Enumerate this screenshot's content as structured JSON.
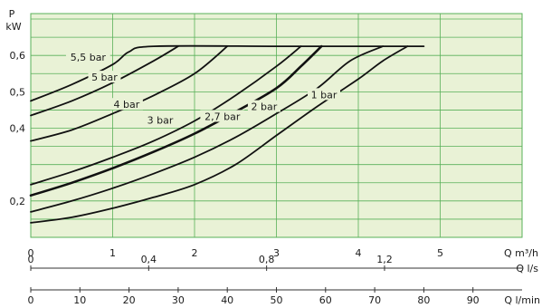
{
  "chart_data": {
    "type": "line",
    "y_axis": {
      "unit_top": "P",
      "unit_bottom": "kW",
      "ticks": [
        {
          "value": 0.2,
          "label": "0,2"
        },
        {
          "value": 0.4,
          "label": "0,4"
        },
        {
          "value": 0.5,
          "label": "0,5"
        },
        {
          "value": 0.6,
          "label": "0,6"
        }
      ],
      "range": [
        0.1,
        0.715
      ]
    },
    "x_axes": [
      {
        "unit": "Q m³/h",
        "range": [
          0,
          6
        ],
        "ticks": [
          {
            "value": 0,
            "label": "0"
          },
          {
            "value": 1,
            "label": "1"
          },
          {
            "value": 2,
            "label": "2"
          },
          {
            "value": 3,
            "label": "3"
          },
          {
            "value": 4,
            "label": "4"
          },
          {
            "value": 5,
            "label": "5"
          }
        ]
      },
      {
        "unit": "Q l/s",
        "ticks": [
          {
            "value": 0,
            "label": "0"
          },
          {
            "value": 0.4,
            "label": "0,4"
          },
          {
            "value": 0.8,
            "label": "0,8"
          },
          {
            "value": 1.2,
            "label": "1,2"
          }
        ]
      },
      {
        "unit": "Q l/min",
        "ticks": [
          {
            "value": 0,
            "label": "0"
          },
          {
            "value": 10,
            "label": "10"
          },
          {
            "value": 20,
            "label": "20"
          },
          {
            "value": 30,
            "label": "30"
          },
          {
            "value": 40,
            "label": "40"
          },
          {
            "value": 50,
            "label": "50"
          },
          {
            "value": 60,
            "label": "60"
          },
          {
            "value": 70,
            "label": "70"
          },
          {
            "value": 80,
            "label": "80"
          },
          {
            "value": 90,
            "label": "90"
          }
        ]
      }
    ],
    "series": [
      {
        "name": "5,5 bar",
        "points": [
          [
            0,
            0.475
          ],
          [
            0.5,
            0.52
          ],
          [
            1.0,
            0.575
          ],
          [
            1.2,
            0.61
          ],
          [
            1.5,
            0.625
          ],
          [
            3.0,
            0.625
          ],
          [
            4.0,
            0.625
          ],
          [
            4.8,
            0.625
          ]
        ]
      },
      {
        "name": "5 bar",
        "points": [
          [
            0,
            0.435
          ],
          [
            0.5,
            0.475
          ],
          [
            1.0,
            0.525
          ],
          [
            1.5,
            0.585
          ],
          [
            1.8,
            0.625
          ]
        ]
      },
      {
        "name": "4 bar",
        "points": [
          [
            0,
            0.365
          ],
          [
            0.5,
            0.395
          ],
          [
            1.0,
            0.44
          ],
          [
            1.5,
            0.49
          ],
          [
            2.0,
            0.55
          ],
          [
            2.4,
            0.625
          ]
        ]
      },
      {
        "name": "3 bar",
        "points": [
          [
            0,
            0.245
          ],
          [
            0.5,
            0.28
          ],
          [
            1.0,
            0.32
          ],
          [
            1.5,
            0.365
          ],
          [
            2.0,
            0.42
          ],
          [
            2.5,
            0.49
          ],
          [
            3.0,
            0.57
          ],
          [
            3.3,
            0.625
          ]
        ]
      },
      {
        "name": "2,7 bar",
        "points": [
          [
            0,
            0.215
          ],
          [
            0.5,
            0.25
          ],
          [
            1.0,
            0.29
          ],
          [
            1.5,
            0.335
          ],
          [
            2.0,
            0.385
          ],
          [
            2.5,
            0.445
          ],
          [
            3.0,
            0.51
          ],
          [
            3.3,
            0.57
          ],
          [
            3.55,
            0.625
          ]
        ]
      },
      {
        "name": "2 bar",
        "points": [
          [
            0,
            0.17
          ],
          [
            0.5,
            0.2
          ],
          [
            1.0,
            0.235
          ],
          [
            1.5,
            0.275
          ],
          [
            2.0,
            0.32
          ],
          [
            2.5,
            0.375
          ],
          [
            3.0,
            0.44
          ],
          [
            3.5,
            0.51
          ],
          [
            3.9,
            0.585
          ],
          [
            4.3,
            0.625
          ]
        ]
      },
      {
        "name": "1 bar",
        "points": [
          [
            0,
            0.14
          ],
          [
            0.5,
            0.155
          ],
          [
            1.0,
            0.18
          ],
          [
            1.5,
            0.21
          ],
          [
            2.0,
            0.245
          ],
          [
            2.5,
            0.3
          ],
          [
            3.0,
            0.38
          ],
          [
            3.5,
            0.46
          ],
          [
            4.0,
            0.535
          ],
          [
            4.3,
            0.585
          ],
          [
            4.6,
            0.625
          ]
        ]
      }
    ],
    "curve_labels": [
      {
        "text": "5,5 bar",
        "x": 0.7,
        "y": 0.593
      },
      {
        "text": "5 bar",
        "x": 0.9,
        "y": 0.538
      },
      {
        "text": "4 bar",
        "x": 1.17,
        "y": 0.463
      },
      {
        "text": "3 bar",
        "x": 1.58,
        "y": 0.42
      },
      {
        "text": "2,7 bar",
        "x": 2.34,
        "y": 0.43
      },
      {
        "text": "2 bar",
        "x": 2.85,
        "y": 0.457
      },
      {
        "text": "1 bar",
        "x": 3.58,
        "y": 0.49
      }
    ],
    "grid": true,
    "colors": {
      "plot_background": "#e9f2d6",
      "grid": "#58b058",
      "curve": "#111111",
      "axis": "#333333"
    }
  }
}
